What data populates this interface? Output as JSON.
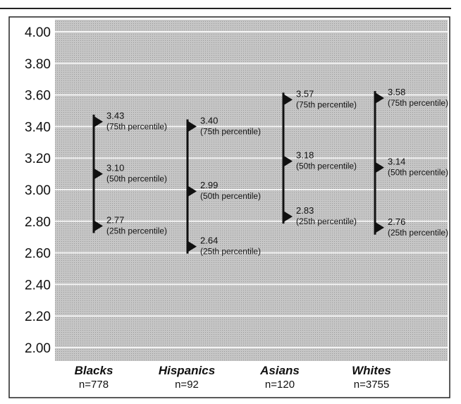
{
  "chart_data": {
    "type": "range",
    "y_range": [
      2.0,
      4.0
    ],
    "y_ticks": [
      "4.00",
      "3.80",
      "3.60",
      "3.40",
      "3.20",
      "3.00",
      "2.80",
      "2.60",
      "2.40",
      "2.20",
      "2.00"
    ],
    "grid": true,
    "groups": [
      {
        "name": "Blacks",
        "n_label": "n=778",
        "points": [
          {
            "value": 3.43,
            "label": "3.43",
            "sub": "(75th percentile)"
          },
          {
            "value": 3.1,
            "label": "3.10",
            "sub": "(50th percentile)"
          },
          {
            "value": 2.77,
            "label": "2.77",
            "sub": "(25th percentile)"
          }
        ]
      },
      {
        "name": "Hispanics",
        "n_label": "n=92",
        "points": [
          {
            "value": 3.4,
            "label": "3.40",
            "sub": "(75th percentile)"
          },
          {
            "value": 2.99,
            "label": "2.99",
            "sub": "(50th percentile)"
          },
          {
            "value": 2.64,
            "label": "2.64",
            "sub": "(25th percentile)"
          }
        ]
      },
      {
        "name": "Asians",
        "n_label": "n=120",
        "points": [
          {
            "value": 3.57,
            "label": "3.57",
            "sub": "(75th percentile)"
          },
          {
            "value": 3.18,
            "label": "3.18",
            "sub": "(50th percentile)"
          },
          {
            "value": 2.83,
            "label": "2.83",
            "sub": "(25th percentile)"
          }
        ]
      },
      {
        "name": "Whites",
        "n_label": "n=3755",
        "points": [
          {
            "value": 3.58,
            "label": "3.58",
            "sub": "(75th percentile)"
          },
          {
            "value": 3.14,
            "label": "3.14",
            "sub": "(50th percentile)"
          },
          {
            "value": 2.76,
            "label": "2.76",
            "sub": "(25th percentile)"
          }
        ]
      }
    ],
    "colors": {
      "plot_bg": "#c4c4c4",
      "grid": "#f4f4f4",
      "ink": "#111111"
    }
  }
}
